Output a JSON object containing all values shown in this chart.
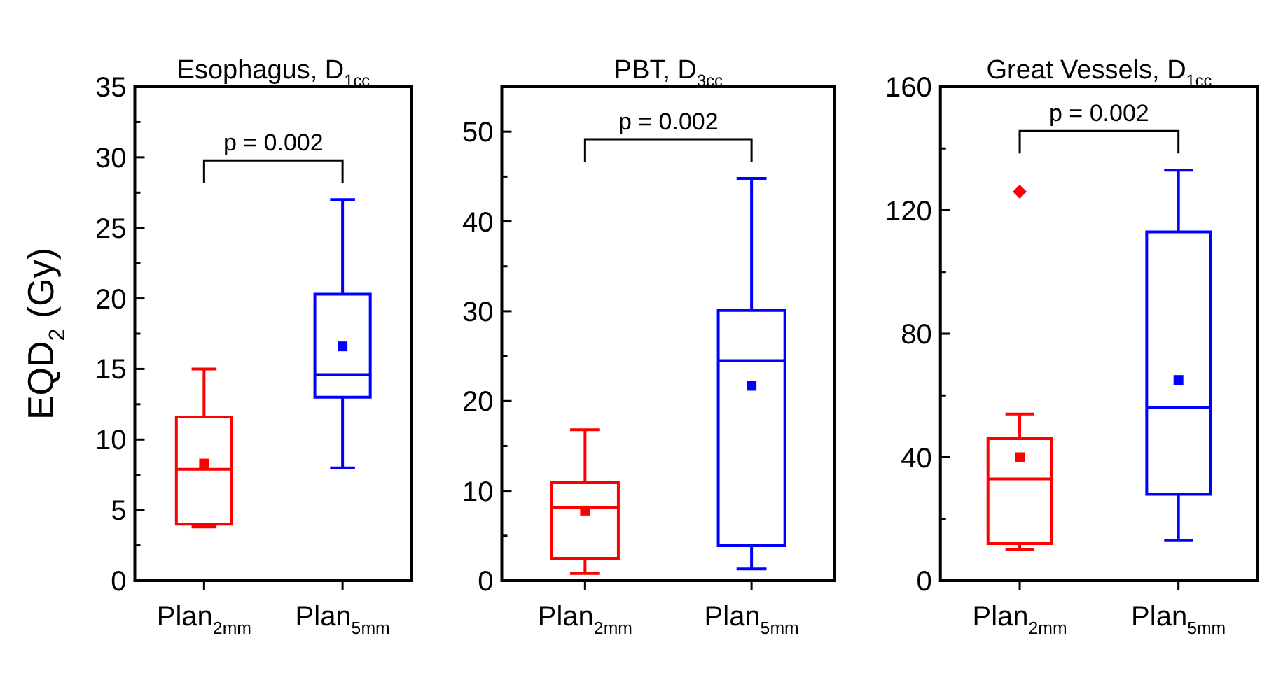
{
  "chart_data": [
    {
      "type": "box",
      "title": "Esophagus, D$_{1cc}$",
      "ylabel": "EQD$_{2}$ (Gy)",
      "categories": [
        "Plan$_{2mm}$",
        "Plan$_{5mm}$"
      ],
      "colors": [
        "#ff0000",
        "#0000ff"
      ],
      "boxes": [
        {
          "low": 3.8,
          "q1": 4.0,
          "median": 7.9,
          "q3": 11.6,
          "high": 15.0,
          "mean": 8.3
        },
        {
          "low": 8.0,
          "q1": 13.0,
          "median": 14.6,
          "q3": 20.3,
          "high": 27.0,
          "mean": 16.6
        }
      ],
      "ylim": [
        0,
        35
      ],
      "yticks": [
        0,
        {
          "value": 2.5,
          "label": null
        },
        5,
        {
          "value": 7.5,
          "label": null
        },
        10,
        {
          "value": 12.5,
          "label": null
        },
        15,
        {
          "value": 17.5,
          "label": null
        },
        20,
        {
          "value": 22.5,
          "label": null
        },
        25,
        {
          "value": 27.5,
          "label": null
        },
        30,
        {
          "value": 32.5,
          "label": null
        },
        35
      ],
      "annotations": [
        "p = 0.002"
      ]
    },
    {
      "type": "box",
      "title": "PBT, D$_{3cc}$",
      "categories": [
        "Plan$_{2mm}$",
        "Plan$_{5mm}$"
      ],
      "colors": [
        "#ff0000",
        "#0000ff"
      ],
      "boxes": [
        {
          "low": 0.8,
          "q1": 2.5,
          "median": 8.1,
          "q3": 10.9,
          "high": 16.8,
          "mean": 7.8
        },
        {
          "low": 1.3,
          "q1": 3.9,
          "median": 24.5,
          "q3": 30.1,
          "high": 44.8,
          "mean": 21.7
        }
      ],
      "ylim": [
        0,
        55
      ],
      "yticks": [
        0,
        {
          "value": 5,
          "label": null
        },
        10,
        {
          "value": 15,
          "label": null
        },
        20,
        {
          "value": 25,
          "label": null
        },
        30,
        {
          "value": 35,
          "label": null
        },
        40,
        {
          "value": 45,
          "label": null
        },
        50
      ],
      "annotations": [
        "p = 0.002"
      ]
    },
    {
      "type": "box",
      "title": "Great Vessels, D$_{1cc}$",
      "categories": [
        "Plan$_{2mm}$",
        "Plan$_{5mm}$"
      ],
      "colors": [
        "#ff0000",
        "#0000ff"
      ],
      "boxes": [
        {
          "low": 10,
          "q1": 12,
          "median": 33,
          "q3": 46,
          "high": 54,
          "mean": 40,
          "outliers": [
            126
          ]
        },
        {
          "low": 13,
          "q1": 28,
          "median": 56,
          "q3": 113,
          "high": 133,
          "mean": 65
        }
      ],
      "ylim": [
        0,
        160
      ],
      "yticks": [
        0,
        {
          "value": 20,
          "label": null
        },
        40,
        {
          "value": 60,
          "label": null
        },
        80,
        {
          "value": 100,
          "label": null
        },
        120,
        {
          "value": 140,
          "label": null
        },
        160
      ],
      "annotations": [
        "p = 0.002"
      ]
    }
  ]
}
